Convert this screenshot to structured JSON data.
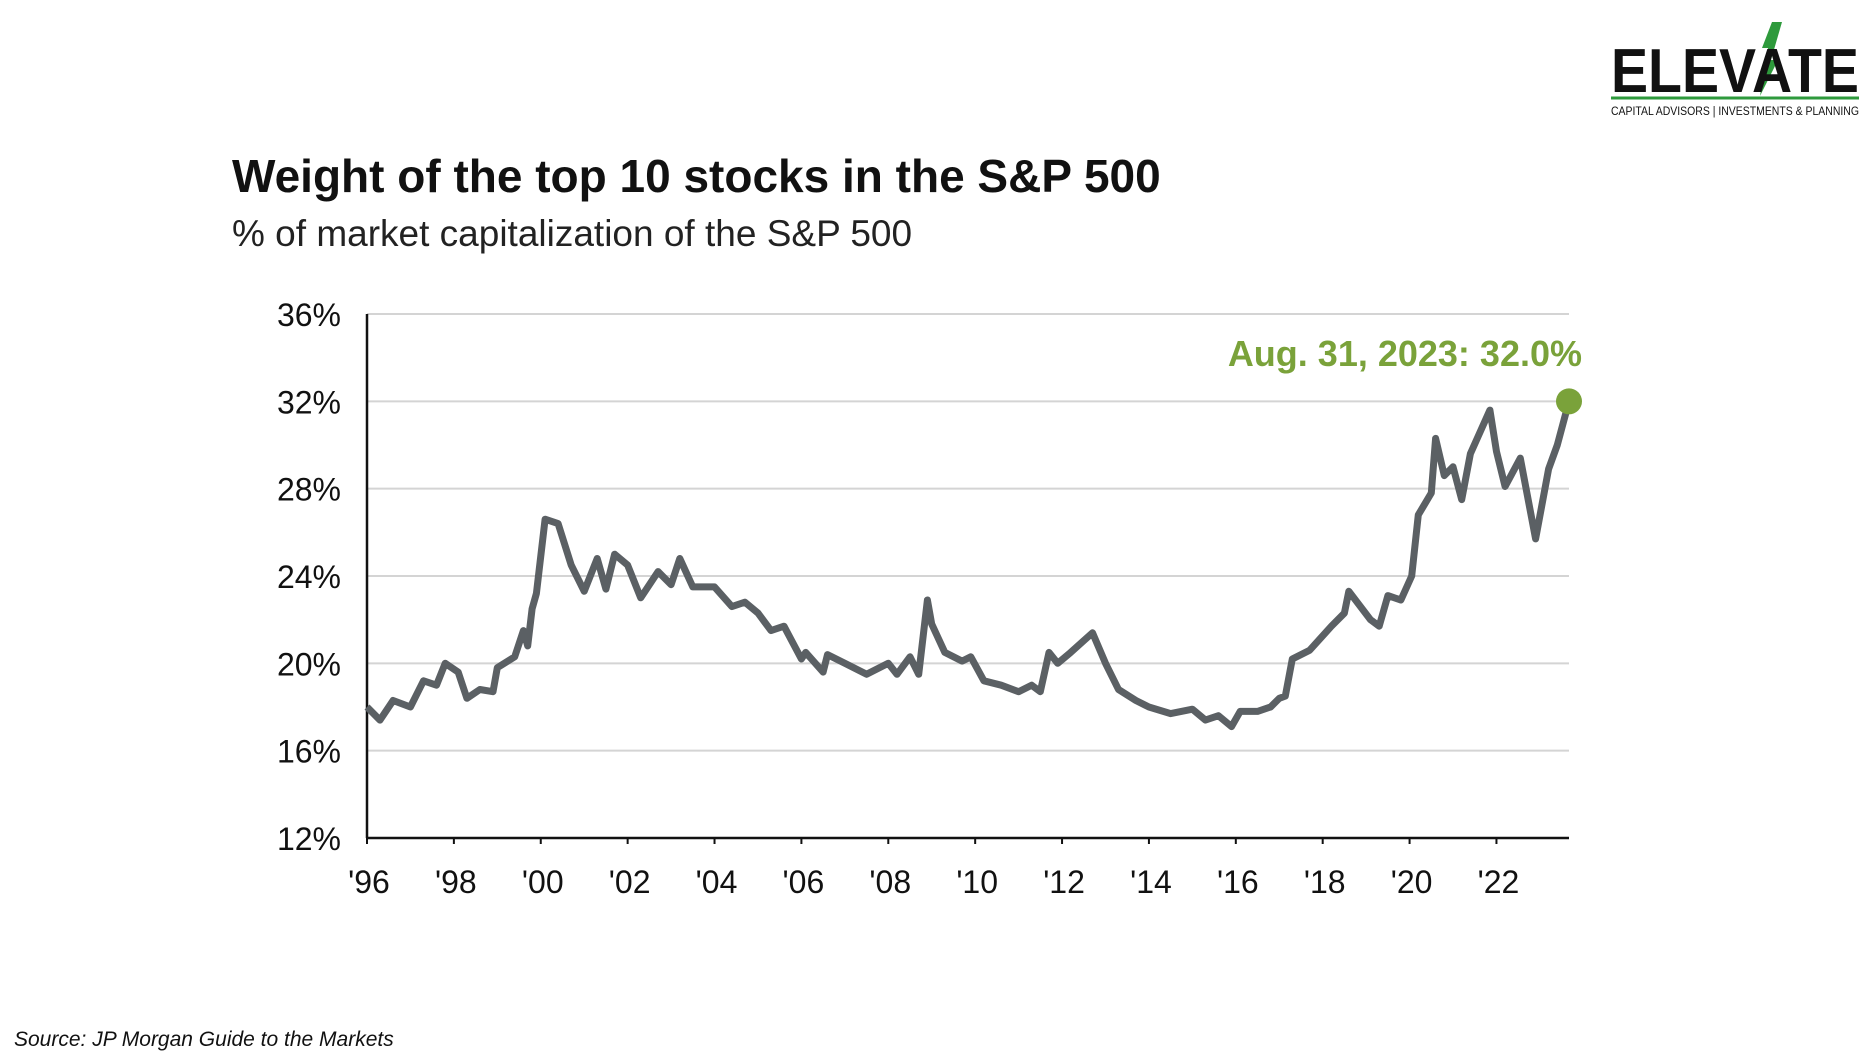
{
  "logo": {
    "name": "ELEVATE",
    "tagline": "CAPITAL ADVISORS | INVESTMENTS & PLANNING"
  },
  "source": "Source: JP Morgan Guide to the Markets",
  "chart_data": {
    "type": "line",
    "title": "Weight of the top 10 stocks in the S&P 500",
    "subtitle": "% of market capitalization of the S&P 500",
    "annotation": "Aug. 31, 2023: 32.0%",
    "annotation_color": "#7aa23a",
    "grid": true,
    "xlim": [
      1996,
      2023.67
    ],
    "xticks": [
      {
        "value": 1996,
        "label": "'96"
      },
      {
        "value": 1998,
        "label": "'98"
      },
      {
        "value": 2000,
        "label": "'00"
      },
      {
        "value": 2002,
        "label": "'02"
      },
      {
        "value": 2004,
        "label": "'04"
      },
      {
        "value": 2006,
        "label": "'06"
      },
      {
        "value": 2008,
        "label": "'08"
      },
      {
        "value": 2010,
        "label": "'10"
      },
      {
        "value": 2012,
        "label": "'12"
      },
      {
        "value": 2014,
        "label": "'14"
      },
      {
        "value": 2016,
        "label": "'16"
      },
      {
        "value": 2018,
        "label": "'18"
      },
      {
        "value": 2020,
        "label": "'20"
      },
      {
        "value": 2022,
        "label": "'22"
      }
    ],
    "ylim": [
      12,
      36
    ],
    "yticks": [
      {
        "value": 12,
        "label": "12%"
      },
      {
        "value": 16,
        "label": "16%"
      },
      {
        "value": 20,
        "label": "20%"
      },
      {
        "value": 24,
        "label": "24%"
      },
      {
        "value": 28,
        "label": "28%"
      },
      {
        "value": 32,
        "label": "32%"
      },
      {
        "value": 36,
        "label": "36%"
      }
    ],
    "series": [
      {
        "color": "#5b6064",
        "x": [
          1996.0,
          1996.3,
          1996.6,
          1997.0,
          1997.3,
          1997.6,
          1997.8,
          1998.1,
          1998.3,
          1998.6,
          1998.9,
          1999.0,
          1999.4,
          1999.6,
          1999.7,
          1999.8,
          1999.9,
          2000.1,
          2000.4,
          2000.7,
          2001.0,
          2001.3,
          2001.5,
          2001.7,
          2002.0,
          2002.3,
          2002.7,
          2003.0,
          2003.2,
          2003.5,
          2004.0,
          2004.4,
          2004.7,
          2005.0,
          2005.3,
          2005.6,
          2006.0,
          2006.1,
          2006.5,
          2006.6,
          2007.0,
          2007.5,
          2008.0,
          2008.2,
          2008.5,
          2008.7,
          2008.9,
          2009.0,
          2009.3,
          2009.7,
          2009.9,
          2010.2,
          2010.6,
          2011.0,
          2011.3,
          2011.5,
          2011.7,
          2011.9,
          2012.2,
          2012.7,
          2013.0,
          2013.3,
          2013.7,
          2014.0,
          2014.5,
          2015.0,
          2015.3,
          2015.6,
          2015.9,
          2016.1,
          2016.5,
          2016.8,
          2017.0,
          2017.14,
          2017.3,
          2017.7,
          2018.2,
          2018.5,
          2018.6,
          2019.1,
          2019.3,
          2019.5,
          2019.8,
          2020.05,
          2020.2,
          2020.5,
          2020.6,
          2020.8,
          2021.0,
          2021.2,
          2021.4,
          2021.85,
          2022.0,
          2022.2,
          2022.55,
          2022.9,
          2023.2,
          2023.4,
          2023.67
        ],
        "values": [
          18.0,
          17.4,
          18.3,
          18.0,
          19.2,
          19.0,
          20.0,
          19.6,
          18.4,
          18.8,
          18.7,
          19.8,
          20.3,
          21.5,
          20.8,
          22.5,
          23.2,
          26.6,
          26.4,
          24.5,
          23.3,
          24.8,
          23.4,
          25.0,
          24.5,
          23.0,
          24.2,
          23.6,
          24.8,
          23.5,
          23.5,
          22.6,
          22.8,
          22.3,
          21.5,
          21.7,
          20.2,
          20.5,
          19.6,
          20.4,
          20.0,
          19.5,
          20.0,
          19.5,
          20.3,
          19.5,
          22.9,
          21.8,
          20.5,
          20.1,
          20.3,
          19.2,
          19.0,
          18.7,
          19.0,
          18.7,
          20.5,
          20.0,
          20.5,
          21.4,
          20.0,
          18.8,
          18.3,
          18.0,
          17.7,
          17.9,
          17.4,
          17.6,
          17.1,
          17.8,
          17.8,
          18.0,
          18.4,
          18.5,
          20.2,
          20.6,
          21.7,
          22.3,
          23.3,
          22.0,
          21.7,
          23.1,
          22.9,
          24.0,
          26.8,
          27.8,
          30.3,
          28.6,
          29.0,
          27.5,
          29.6,
          31.6,
          29.7,
          28.1,
          29.4,
          25.7,
          28.9,
          30.0,
          32.0
        ]
      }
    ]
  }
}
